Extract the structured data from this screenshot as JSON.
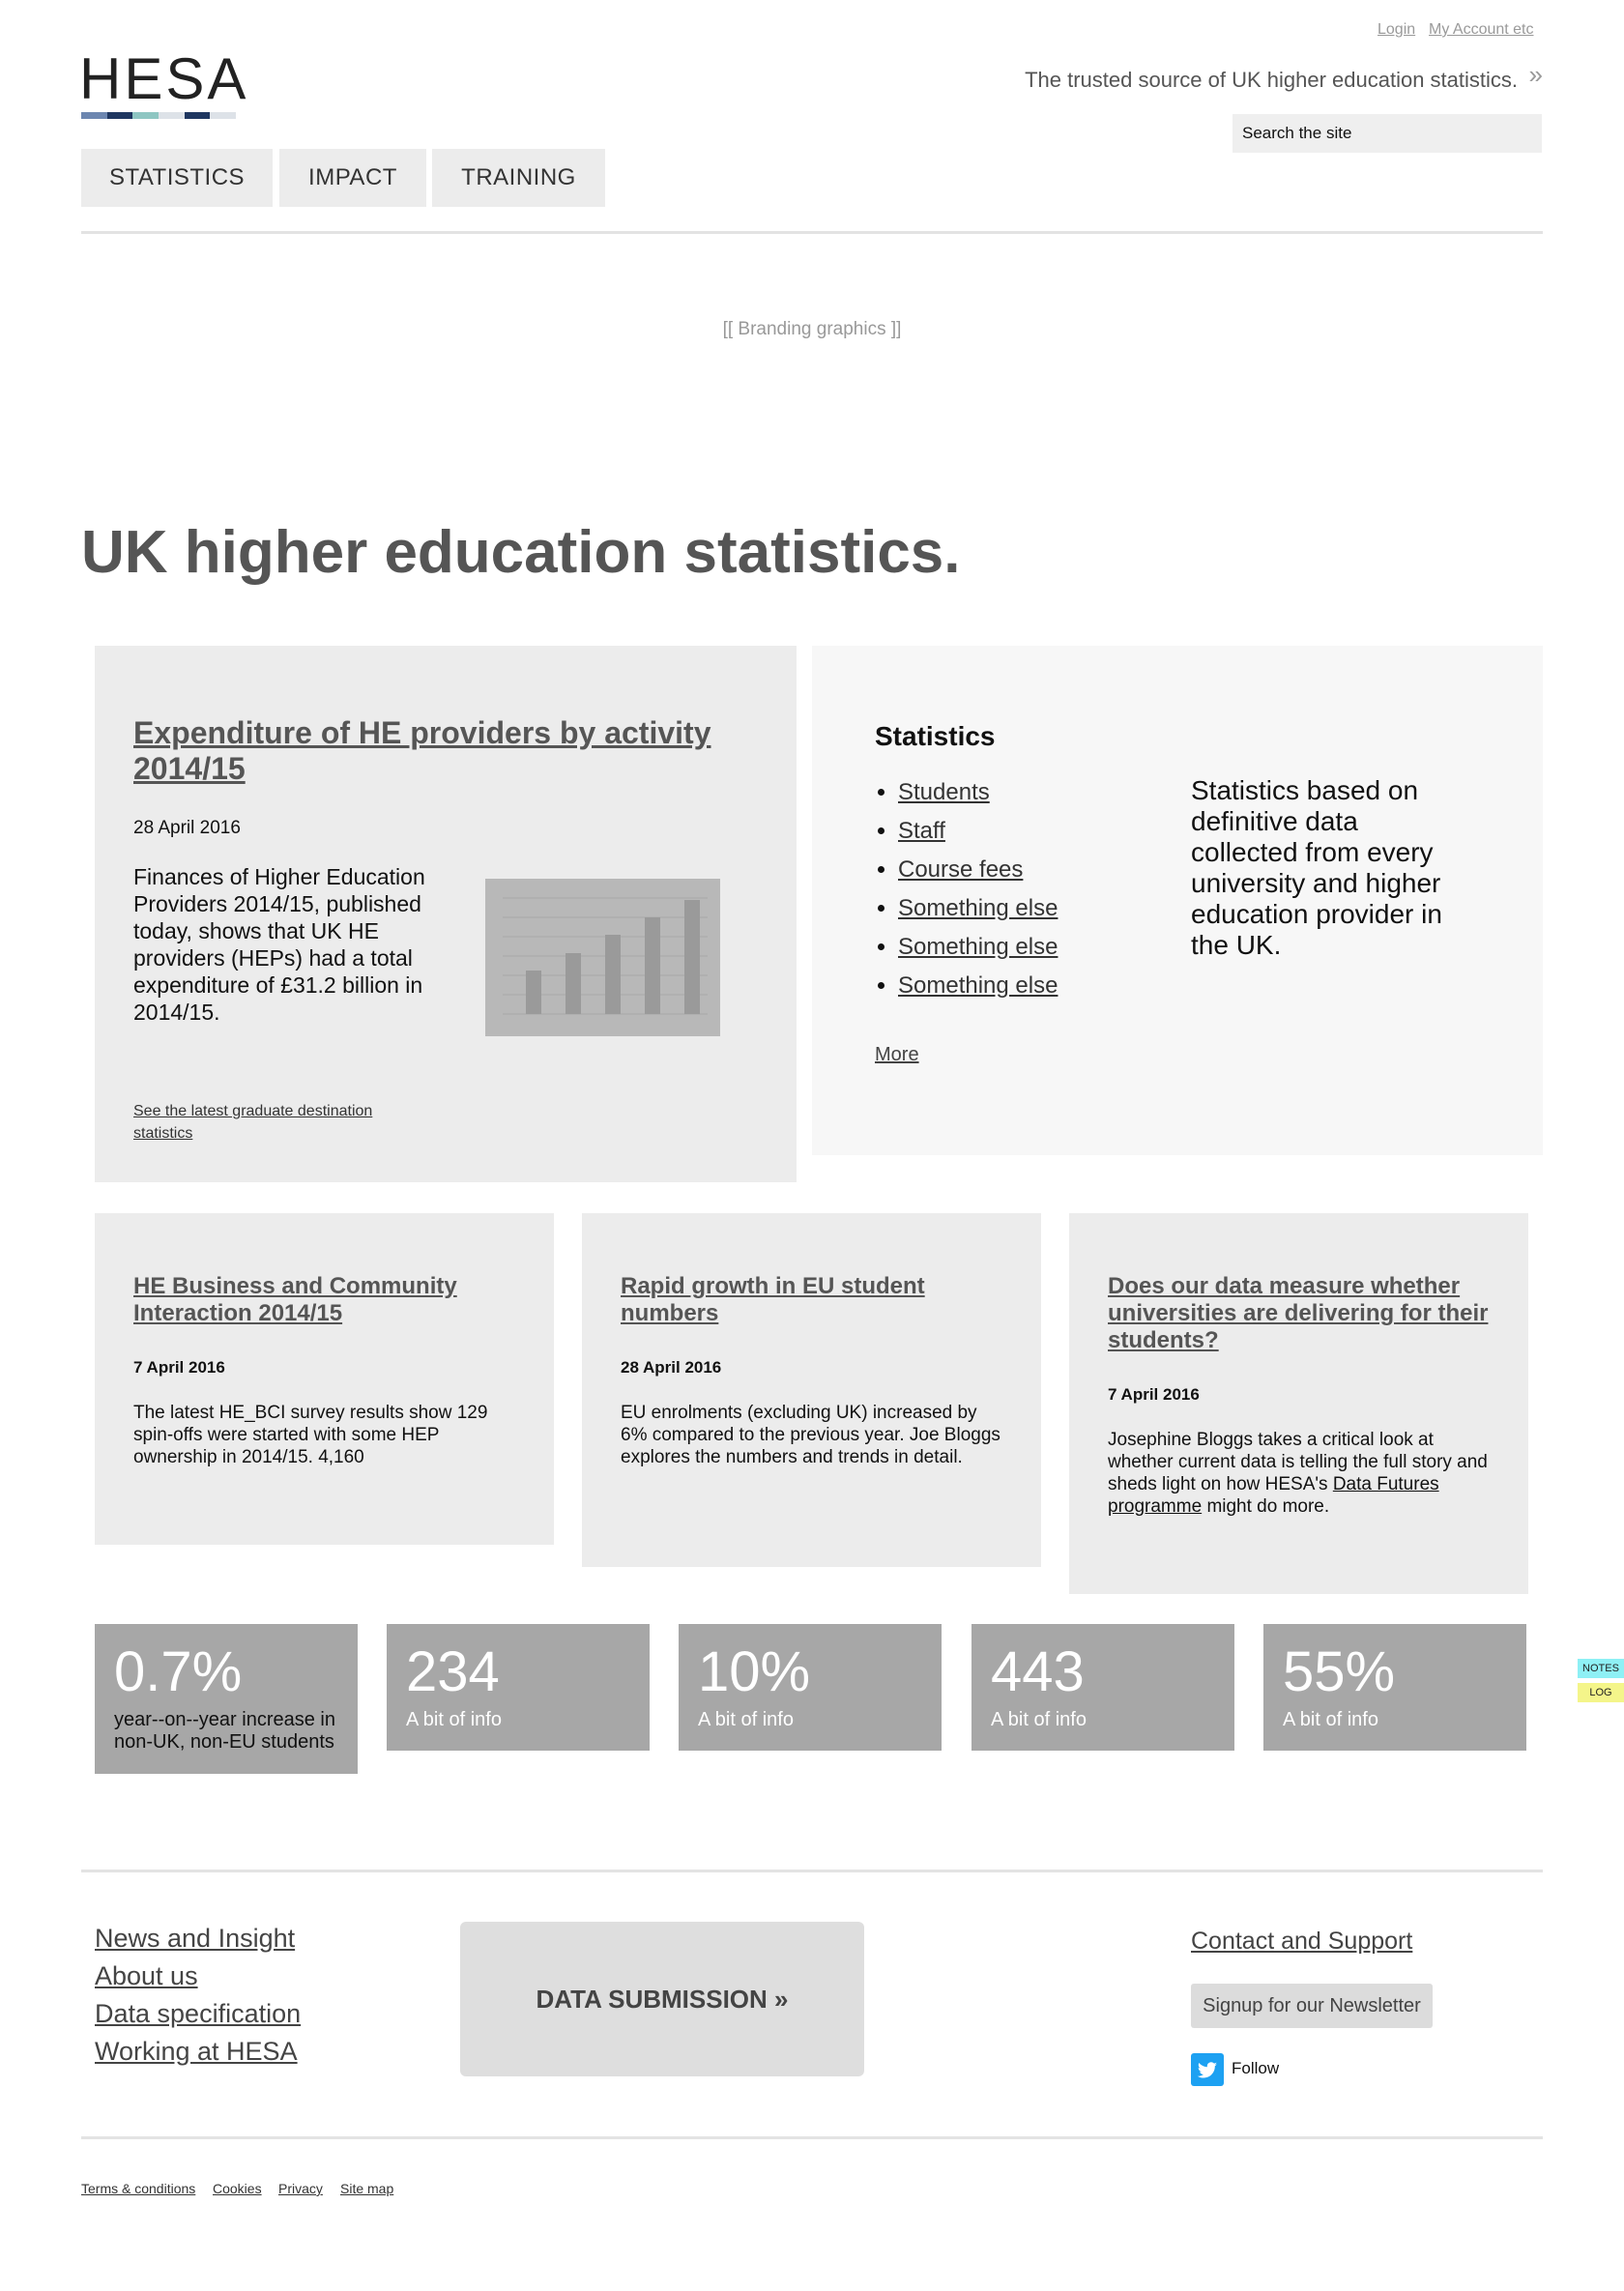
{
  "header": {
    "login": "Login",
    "my_account": "My Account etc",
    "logo": "HESA",
    "logo_colors": [
      "#6c86b0",
      "#1e3660",
      "#8ec6c2",
      "#dde2e8",
      "#1e3660",
      "#dde2e8"
    ],
    "tagline": "The trusted source of UK higher education statistics.",
    "tagline_arrow": "»",
    "search_placeholder": "Search the site"
  },
  "nav": [
    "STATISTICS",
    "IMPACT",
    "TRAINING"
  ],
  "branding": "[[ Branding graphics ]]",
  "page_title": "UK higher education statistics.",
  "feature": {
    "title": "Expenditure of HE providers by activity 2014/15",
    "date": "28 April 2016",
    "body": "Finances of Higher Education Providers 2014/15, published today, shows that UK HE providers (HEPs) had a total expenditure of £31.2 billion in 2014/15.",
    "link": "See the latest graduate destination statistics"
  },
  "statistics": {
    "heading": "Statistics",
    "items": [
      "Students",
      "Staff",
      "Course fees",
      "Something else",
      "Something else",
      "Something else"
    ],
    "more": "More",
    "description": "Statistics based on definitive data collected from every university and higher education provider in the UK."
  },
  "news": [
    {
      "title": "HE Business and Community Interaction 2014/15",
      "date": "7 April 2016",
      "body": "The latest HE_BCI survey results show 129 spin-offs were started with some HEP ownership in 2014/15. 4,160"
    },
    {
      "title": "Rapid growth in EU student numbers",
      "date": "28 April 2016",
      "body": "EU enrolments (excluding UK) increased by 6% compared to the previous year. Joe Bloggs explores the numbers and trends in detail."
    },
    {
      "title": "Does our data measure whether universities are delivering for their students?",
      "date": "7 April 2016",
      "body_prefix": "Josephine Bloggs takes a critical look at whether current data is telling the full story and sheds light on how HESA's",
      "body_link": "Data Futures programme",
      "body_suffix": "might do more."
    }
  ],
  "tiles": [
    {
      "value": "0.7%",
      "label": "year--on--year increase in non-UK, non-EU students"
    },
    {
      "value": "234",
      "label": "A bit of info"
    },
    {
      "value": "10%",
      "label": "A bit of info"
    },
    {
      "value": "443",
      "label": "A bit of info"
    },
    {
      "value": "55%",
      "label": "A bit of info"
    }
  ],
  "side_tabs": {
    "notes": "NOTES",
    "log": "LOG",
    "notes_color": "#8ef0f5",
    "log_color": "#f4f58a"
  },
  "footer": {
    "links": [
      "News and Insight",
      "About us",
      "Data specification",
      "Working at HESA"
    ],
    "data_submission": "DATA SUBMISSION »",
    "contact": "Contact and Support",
    "newsletter": "Signup for our Newsletter",
    "follow": "Follow",
    "legal": [
      "Terms & conditions",
      "Cookies",
      "Privacy",
      "Site map"
    ]
  }
}
